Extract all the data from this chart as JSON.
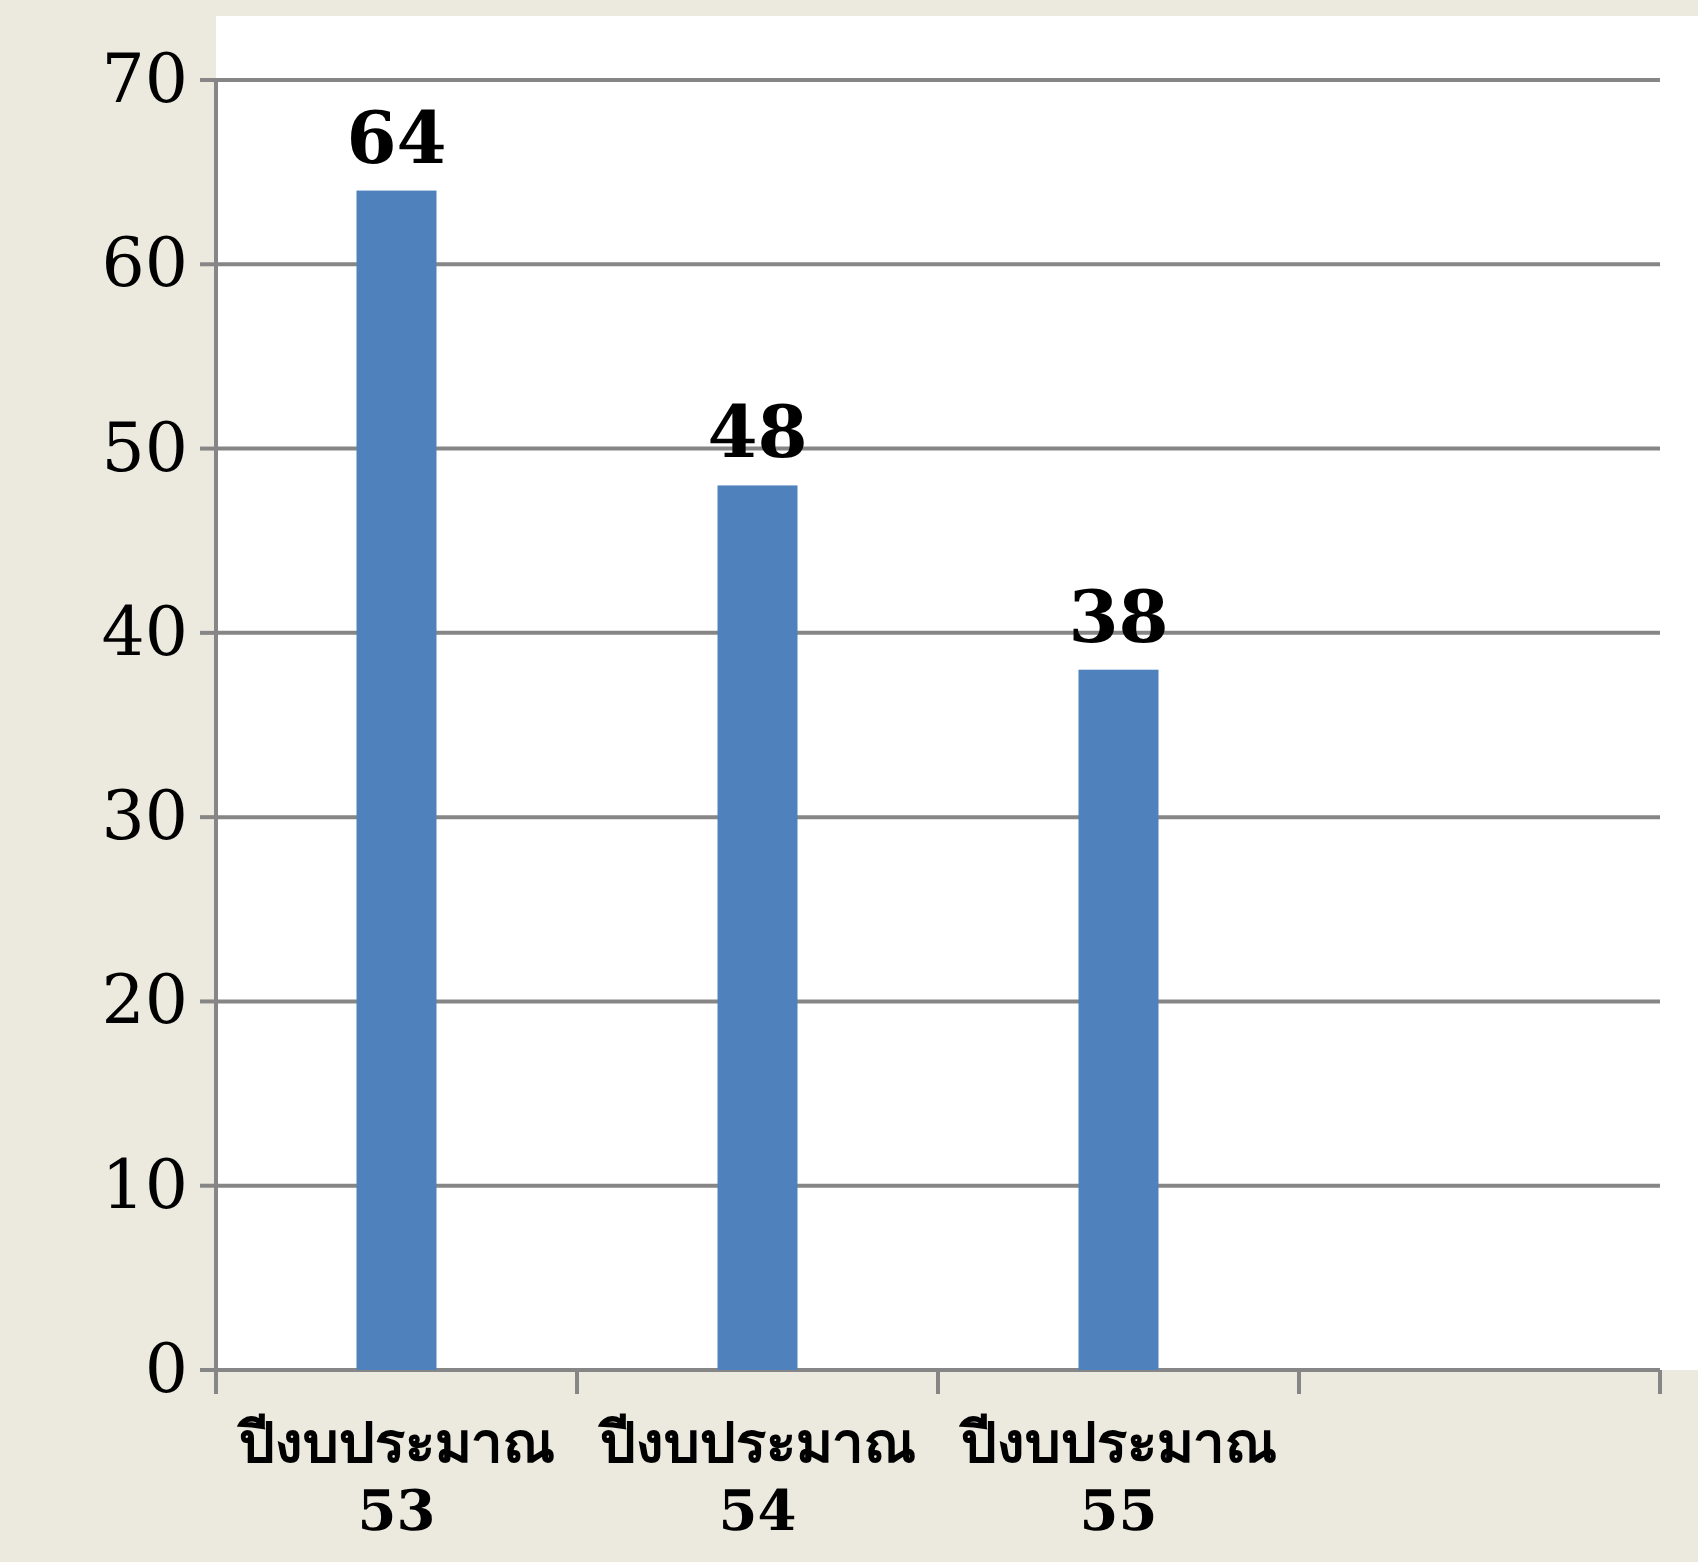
{
  "chart_data": {
    "type": "bar",
    "categories": [
      "ปีงบประมาณ 53",
      "ปีงบประมาณ 54",
      "ปีงบประมาณ 55",
      null
    ],
    "values": [
      64,
      48,
      38,
      null
    ],
    "color": "#4f81bd",
    "ylim": [
      0,
      70
    ],
    "yticks": [
      0,
      10,
      20,
      30,
      40,
      50,
      60,
      70
    ],
    "grid": "y",
    "data_labels": true
  }
}
